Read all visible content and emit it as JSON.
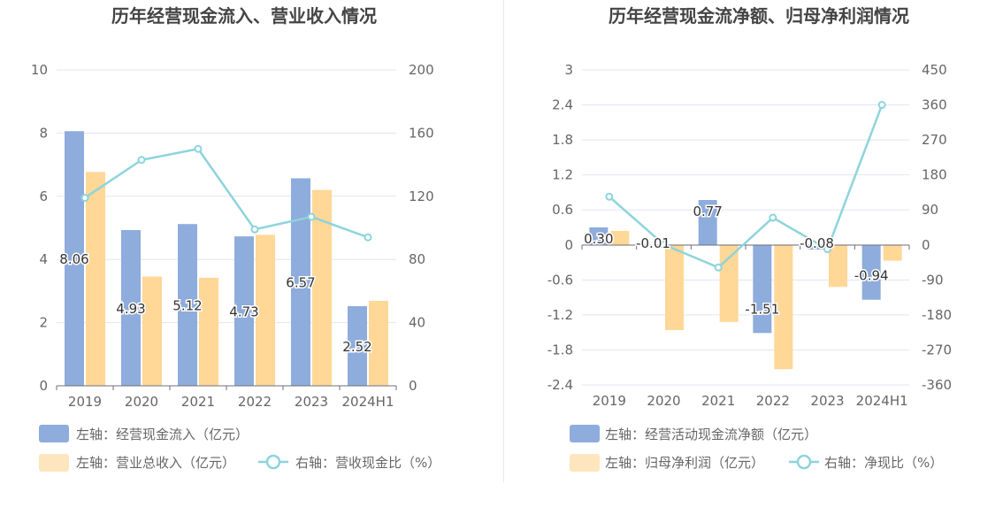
{
  "colors": {
    "bar_blue": "#8eacdc",
    "bar_orange": "#ffd797",
    "line_cyan": "#8dd4dc",
    "legend_blue": "#8eacdc",
    "legend_orange": "#fde5bd",
    "title": "#444444",
    "axis_text": "#666666",
    "grid": "#e2e5f0"
  },
  "chart_data": [
    {
      "type": "bar",
      "title": "历年经营现金流入、营业收入情况",
      "categories": [
        "2019",
        "2020",
        "2021",
        "2022",
        "2023",
        "2024H1"
      ],
      "left_axis": {
        "ylim": [
          0,
          10
        ],
        "ticks": [
          "0",
          "2",
          "4",
          "6",
          "8",
          "10"
        ]
      },
      "right_axis": {
        "ylim": [
          0,
          200
        ],
        "ticks": [
          "0",
          "40",
          "80",
          "120",
          "160",
          "200"
        ]
      },
      "series": [
        {
          "name": "左轴：经营现金流入（亿元）",
          "axis": "left",
          "kind": "bar",
          "values": [
            8.06,
            4.93,
            5.12,
            4.73,
            6.57,
            2.52
          ],
          "labels": [
            "8.06",
            "4.93",
            "5.12",
            "4.73",
            "6.57",
            "2.52"
          ]
        },
        {
          "name": "左轴：营业总收入（亿元）",
          "axis": "left",
          "kind": "bar",
          "values": [
            6.77,
            3.46,
            3.42,
            4.78,
            6.2,
            2.69
          ]
        },
        {
          "name": "右轴：营收现金比（%）",
          "axis": "right",
          "kind": "line",
          "values": [
            119,
            143,
            150,
            99,
            107,
            94
          ]
        }
      ],
      "legend": [
        "左轴：经营现金流入（亿元）",
        "左轴：营业总收入（亿元）",
        "右轴：营收现金比（%）"
      ]
    },
    {
      "type": "bar",
      "title": "历年经营现金流净额、归母净利润情况",
      "categories": [
        "2019",
        "2020",
        "2021",
        "2022",
        "2023",
        "2024H1"
      ],
      "left_axis": {
        "ylim": [
          -2.4,
          3
        ],
        "ticks": [
          "-2.4",
          "-1.8",
          "-1.2",
          "-0.6",
          "0",
          "0.6",
          "1.2",
          "1.8",
          "2.4",
          "3"
        ]
      },
      "right_axis": {
        "ylim": [
          -360,
          450
        ],
        "ticks": [
          "-360",
          "-270",
          "-180",
          "-90",
          "0",
          "90",
          "180",
          "270",
          "360",
          "450"
        ]
      },
      "series": [
        {
          "name": "左轴：经营活动现金流净额（亿元）",
          "axis": "left",
          "kind": "bar",
          "values": [
            0.3,
            -0.01,
            0.77,
            -1.51,
            -0.08,
            -0.94
          ],
          "labels": [
            "0.30",
            "-0.01",
            "0.77",
            "-1.51",
            "-0.08",
            "-0.94"
          ]
        },
        {
          "name": "左轴：归母净利润（亿元）",
          "axis": "left",
          "kind": "bar",
          "values": [
            0.24,
            -1.46,
            -1.32,
            -2.13,
            -0.72,
            -0.27
          ]
        },
        {
          "name": "右轴：净现比（%）",
          "axis": "right",
          "kind": "line",
          "values": [
            124,
            1,
            -58,
            70,
            -11,
            360
          ]
        }
      ],
      "legend": [
        "左轴：经营活动现金流净额（亿元）",
        "左轴：归母净利润（亿元）",
        "右轴：净现比（%）"
      ]
    }
  ]
}
